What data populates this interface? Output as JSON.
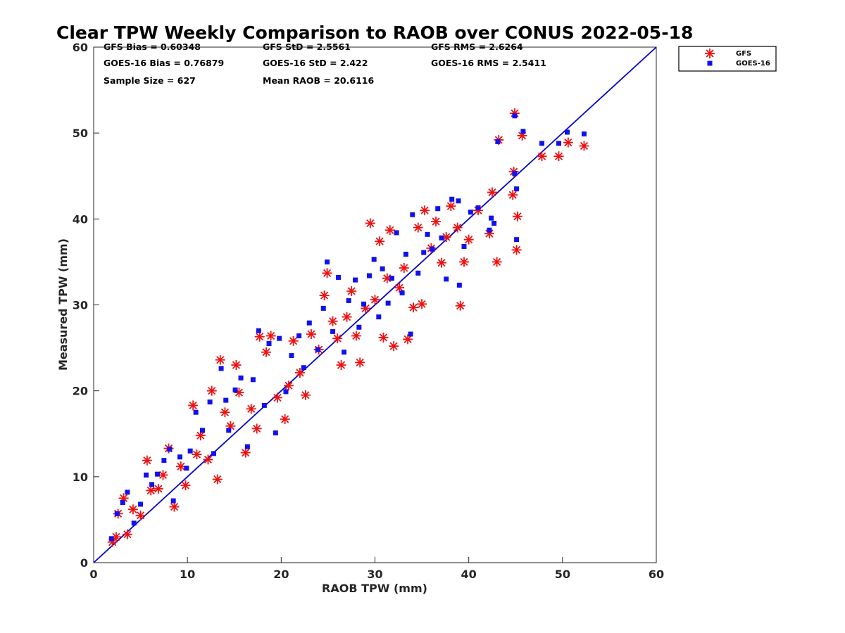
{
  "chart_data": {
    "type": "scatter",
    "title": "Clear TPW Weekly Comparison to RAOB over CONUS 2022-05-18",
    "xlabel": "RAOB TPW (mm)",
    "ylabel": "Measured TPW (mm)",
    "xlim": [
      0,
      60
    ],
    "ylim": [
      0,
      60
    ],
    "xticks": [
      "0",
      "10",
      "20",
      "30",
      "40",
      "50",
      "60"
    ],
    "yticks": [
      "0",
      "10",
      "20",
      "30",
      "40",
      "50",
      "60"
    ],
    "grid": false,
    "legend_position": "top-right, outside plot",
    "stats": [
      [
        "GFS Bias = 0.60348",
        "GFS StD = 2.5561",
        "GFS RMS = 2.6264"
      ],
      [
        "GOES-16 Bias = 0.76879",
        "GOES-16 StD = 2.422",
        "GOES-16 RMS = 2.5411"
      ],
      [
        "Sample Size = 627",
        "Mean RAOB = 20.6116",
        ""
      ]
    ],
    "reference_line": {
      "x": [
        0,
        60
      ],
      "y": [
        0,
        60
      ],
      "color": "#0000cc"
    },
    "series": [
      {
        "name": "GFS",
        "marker": "asterisk",
        "color": "#ee1111",
        "points": [
          [
            2.0,
            2.4
          ],
          [
            2.4,
            3.0
          ],
          [
            2.6,
            5.7
          ],
          [
            3.2,
            7.5
          ],
          [
            3.6,
            3.3
          ],
          [
            4.2,
            6.2
          ],
          [
            5.0,
            5.5
          ],
          [
            5.7,
            11.9
          ],
          [
            6.1,
            8.4
          ],
          [
            6.9,
            8.6
          ],
          [
            7.4,
            10.2
          ],
          [
            8.0,
            13.3
          ],
          [
            8.6,
            6.5
          ],
          [
            9.3,
            11.2
          ],
          [
            9.8,
            9.0
          ],
          [
            10.6,
            18.3
          ],
          [
            11.0,
            12.6
          ],
          [
            11.4,
            14.8
          ],
          [
            12.2,
            12.0
          ],
          [
            12.6,
            20.0
          ],
          [
            13.2,
            9.7
          ],
          [
            13.5,
            23.6
          ],
          [
            14.0,
            17.5
          ],
          [
            14.6,
            15.9
          ],
          [
            15.2,
            23.0
          ],
          [
            15.5,
            19.8
          ],
          [
            16.2,
            12.8
          ],
          [
            16.8,
            17.9
          ],
          [
            17.4,
            15.6
          ],
          [
            17.7,
            26.3
          ],
          [
            18.4,
            24.5
          ],
          [
            18.9,
            26.4
          ],
          [
            19.6,
            19.2
          ],
          [
            20.4,
            16.7
          ],
          [
            20.8,
            20.6
          ],
          [
            21.3,
            25.8
          ],
          [
            22.0,
            22.1
          ],
          [
            22.6,
            19.5
          ],
          [
            23.2,
            26.6
          ],
          [
            24.0,
            24.8
          ],
          [
            24.6,
            31.1
          ],
          [
            24.9,
            33.7
          ],
          [
            25.5,
            28.1
          ],
          [
            26.0,
            26.1
          ],
          [
            26.4,
            23.0
          ],
          [
            27.0,
            28.6
          ],
          [
            27.5,
            31.6
          ],
          [
            28.0,
            26.4
          ],
          [
            28.4,
            23.3
          ],
          [
            29.0,
            29.6
          ],
          [
            29.5,
            39.5
          ],
          [
            30.0,
            30.6
          ],
          [
            30.5,
            37.4
          ],
          [
            30.9,
            26.2
          ],
          [
            31.3,
            33.1
          ],
          [
            31.6,
            38.7
          ],
          [
            32.0,
            25.2
          ],
          [
            32.6,
            32.0
          ],
          [
            33.1,
            34.3
          ],
          [
            33.5,
            26.0
          ],
          [
            34.1,
            29.7
          ],
          [
            34.6,
            39.0
          ],
          [
            35.0,
            30.1
          ],
          [
            35.3,
            41.0
          ],
          [
            36.0,
            36.6
          ],
          [
            36.5,
            39.7
          ],
          [
            37.1,
            34.9
          ],
          [
            37.6,
            37.9
          ],
          [
            38.1,
            41.5
          ],
          [
            38.8,
            39.0
          ],
          [
            39.1,
            29.9
          ],
          [
            39.5,
            35.0
          ],
          [
            40.0,
            37.6
          ],
          [
            41.0,
            41.0
          ],
          [
            42.2,
            38.3
          ],
          [
            42.5,
            43.1
          ],
          [
            43.0,
            35.0
          ],
          [
            43.2,
            49.2
          ],
          [
            44.7,
            42.8
          ],
          [
            44.8,
            45.5
          ],
          [
            44.9,
            52.3
          ],
          [
            45.1,
            36.4
          ],
          [
            45.2,
            40.3
          ],
          [
            45.7,
            49.7
          ],
          [
            47.8,
            47.3
          ],
          [
            49.6,
            47.3
          ],
          [
            50.6,
            48.9
          ],
          [
            52.3,
            48.5
          ]
        ]
      },
      {
        "name": "GOES-16",
        "marker": "square",
        "color": "#1111ee",
        "points": [
          [
            1.9,
            2.8
          ],
          [
            2.5,
            5.7
          ],
          [
            3.1,
            7.0
          ],
          [
            3.6,
            8.2
          ],
          [
            4.3,
            4.6
          ],
          [
            5.0,
            6.8
          ],
          [
            5.6,
            10.2
          ],
          [
            6.2,
            9.1
          ],
          [
            6.8,
            10.3
          ],
          [
            7.5,
            11.9
          ],
          [
            8.1,
            13.2
          ],
          [
            8.5,
            7.2
          ],
          [
            9.2,
            12.3
          ],
          [
            9.9,
            11.0
          ],
          [
            10.3,
            13.0
          ],
          [
            10.9,
            17.5
          ],
          [
            11.6,
            15.4
          ],
          [
            12.4,
            18.7
          ],
          [
            12.8,
            12.7
          ],
          [
            13.6,
            22.6
          ],
          [
            14.1,
            18.9
          ],
          [
            14.4,
            15.4
          ],
          [
            15.1,
            20.1
          ],
          [
            15.7,
            21.5
          ],
          [
            16.4,
            13.5
          ],
          [
            17.0,
            21.3
          ],
          [
            17.6,
            27.0
          ],
          [
            18.2,
            18.3
          ],
          [
            18.7,
            25.5
          ],
          [
            19.4,
            15.1
          ],
          [
            19.8,
            26.1
          ],
          [
            20.5,
            19.9
          ],
          [
            21.1,
            24.1
          ],
          [
            21.9,
            26.4
          ],
          [
            22.4,
            22.7
          ],
          [
            23.0,
            27.9
          ],
          [
            23.9,
            24.8
          ],
          [
            24.5,
            29.6
          ],
          [
            24.9,
            35.0
          ],
          [
            25.5,
            26.9
          ],
          [
            26.1,
            33.2
          ],
          [
            26.7,
            24.5
          ],
          [
            27.2,
            30.5
          ],
          [
            27.9,
            32.9
          ],
          [
            28.3,
            27.4
          ],
          [
            28.8,
            30.1
          ],
          [
            29.4,
            33.4
          ],
          [
            29.9,
            35.3
          ],
          [
            30.4,
            28.6
          ],
          [
            30.8,
            34.2
          ],
          [
            31.4,
            30.2
          ],
          [
            31.8,
            33.1
          ],
          [
            32.3,
            38.4
          ],
          [
            32.9,
            31.4
          ],
          [
            33.3,
            35.9
          ],
          [
            33.8,
            26.6
          ],
          [
            34.0,
            40.5
          ],
          [
            34.6,
            33.7
          ],
          [
            35.2,
            36.1
          ],
          [
            35.6,
            38.2
          ],
          [
            36.1,
            36.5
          ],
          [
            36.7,
            41.2
          ],
          [
            37.1,
            37.8
          ],
          [
            37.6,
            33.0
          ],
          [
            38.2,
            42.3
          ],
          [
            38.9,
            42.1
          ],
          [
            39.0,
            32.3
          ],
          [
            39.5,
            36.8
          ],
          [
            40.2,
            40.8
          ],
          [
            41.0,
            41.3
          ],
          [
            42.2,
            38.7
          ],
          [
            42.4,
            40.1
          ],
          [
            42.7,
            39.5
          ],
          [
            43.1,
            49.0
          ],
          [
            44.9,
            45.3
          ],
          [
            44.9,
            52.0
          ],
          [
            45.1,
            43.5
          ],
          [
            45.1,
            37.6
          ],
          [
            45.8,
            50.2
          ],
          [
            47.8,
            48.8
          ],
          [
            49.6,
            48.8
          ],
          [
            50.5,
            50.1
          ],
          [
            52.3,
            49.9
          ]
        ]
      }
    ]
  }
}
